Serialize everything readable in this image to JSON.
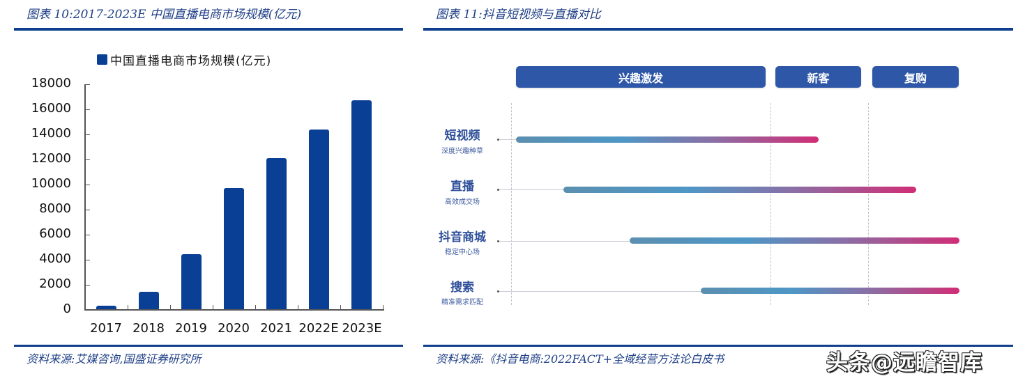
{
  "left_panel": {
    "title": "图表 10:2017-2023E 中国直播电商市场规模(亿元)",
    "legend": "中国直播电商市场规模(亿元)",
    "source": "资料来源:艾媒咨询,国盛证券研究所",
    "y_ticks": [
      "18000",
      "16000",
      "14000",
      "12000",
      "10000",
      "8000",
      "6000",
      "4000",
      "2000",
      "0"
    ],
    "x_labels": [
      "2017",
      "2018",
      "2019",
      "2020",
      "2021",
      "2022E",
      "2023E"
    ]
  },
  "right_panel": {
    "title": "图表 11:抖音短视频与直播对比",
    "stages": [
      "兴趣激发",
      "新客",
      "复购"
    ],
    "rows": [
      {
        "title": "短视频",
        "subtitle": "深度兴趣种草"
      },
      {
        "title": "直播",
        "subtitle": "高效成交场"
      },
      {
        "title": "抖音商城",
        "subtitle": "稳定中心场"
      },
      {
        "title": "搜索",
        "subtitle": "精准需求匹配"
      }
    ],
    "source_visible": "资料来源:《抖音电商:2022FACT+全域经营方法论白皮书",
    "watermark": "头条@远瞻智库"
  },
  "colors": {
    "bar": "#0a3f96",
    "rule": "#0d3f8c",
    "stage_bg": "#2e57a8",
    "gradient_start": "#4e97c6",
    "gradient_end": "#d12d76"
  },
  "chart_data": [
    {
      "type": "bar",
      "title": "2017-2023E 中国直播电商市场规模(亿元)",
      "categories": [
        "2017",
        "2018",
        "2019",
        "2020",
        "2021",
        "2022E",
        "2023E"
      ],
      "series": [
        {
          "name": "中国直播电商市场规模(亿元)",
          "values": [
            300,
            1400,
            4400,
            9700,
            12100,
            14400,
            16700
          ]
        }
      ],
      "xlabel": "",
      "ylabel": "",
      "ylim": [
        0,
        18000
      ],
      "y_ticks": [
        0,
        2000,
        4000,
        6000,
        8000,
        10000,
        12000,
        14000,
        16000,
        18000
      ],
      "grid": false,
      "legend_position": "top"
    },
    {
      "type": "diagram",
      "title": "抖音短视频与直播对比",
      "stages": [
        "兴趣激发",
        "新客",
        "复购"
      ],
      "rows": [
        {
          "channel": "短视频",
          "role": "深度兴趣种草",
          "span": [
            "兴趣激发",
            "新客"
          ]
        },
        {
          "channel": "直播",
          "role": "高效成交场",
          "span": [
            "兴趣激发",
            "复购"
          ]
        },
        {
          "channel": "抖音商城",
          "role": "稳定中心场",
          "span": [
            "兴趣激发",
            "复购"
          ]
        },
        {
          "channel": "搜索",
          "role": "精准需求匹配",
          "span": [
            "兴趣激发",
            "复购"
          ]
        }
      ]
    }
  ]
}
